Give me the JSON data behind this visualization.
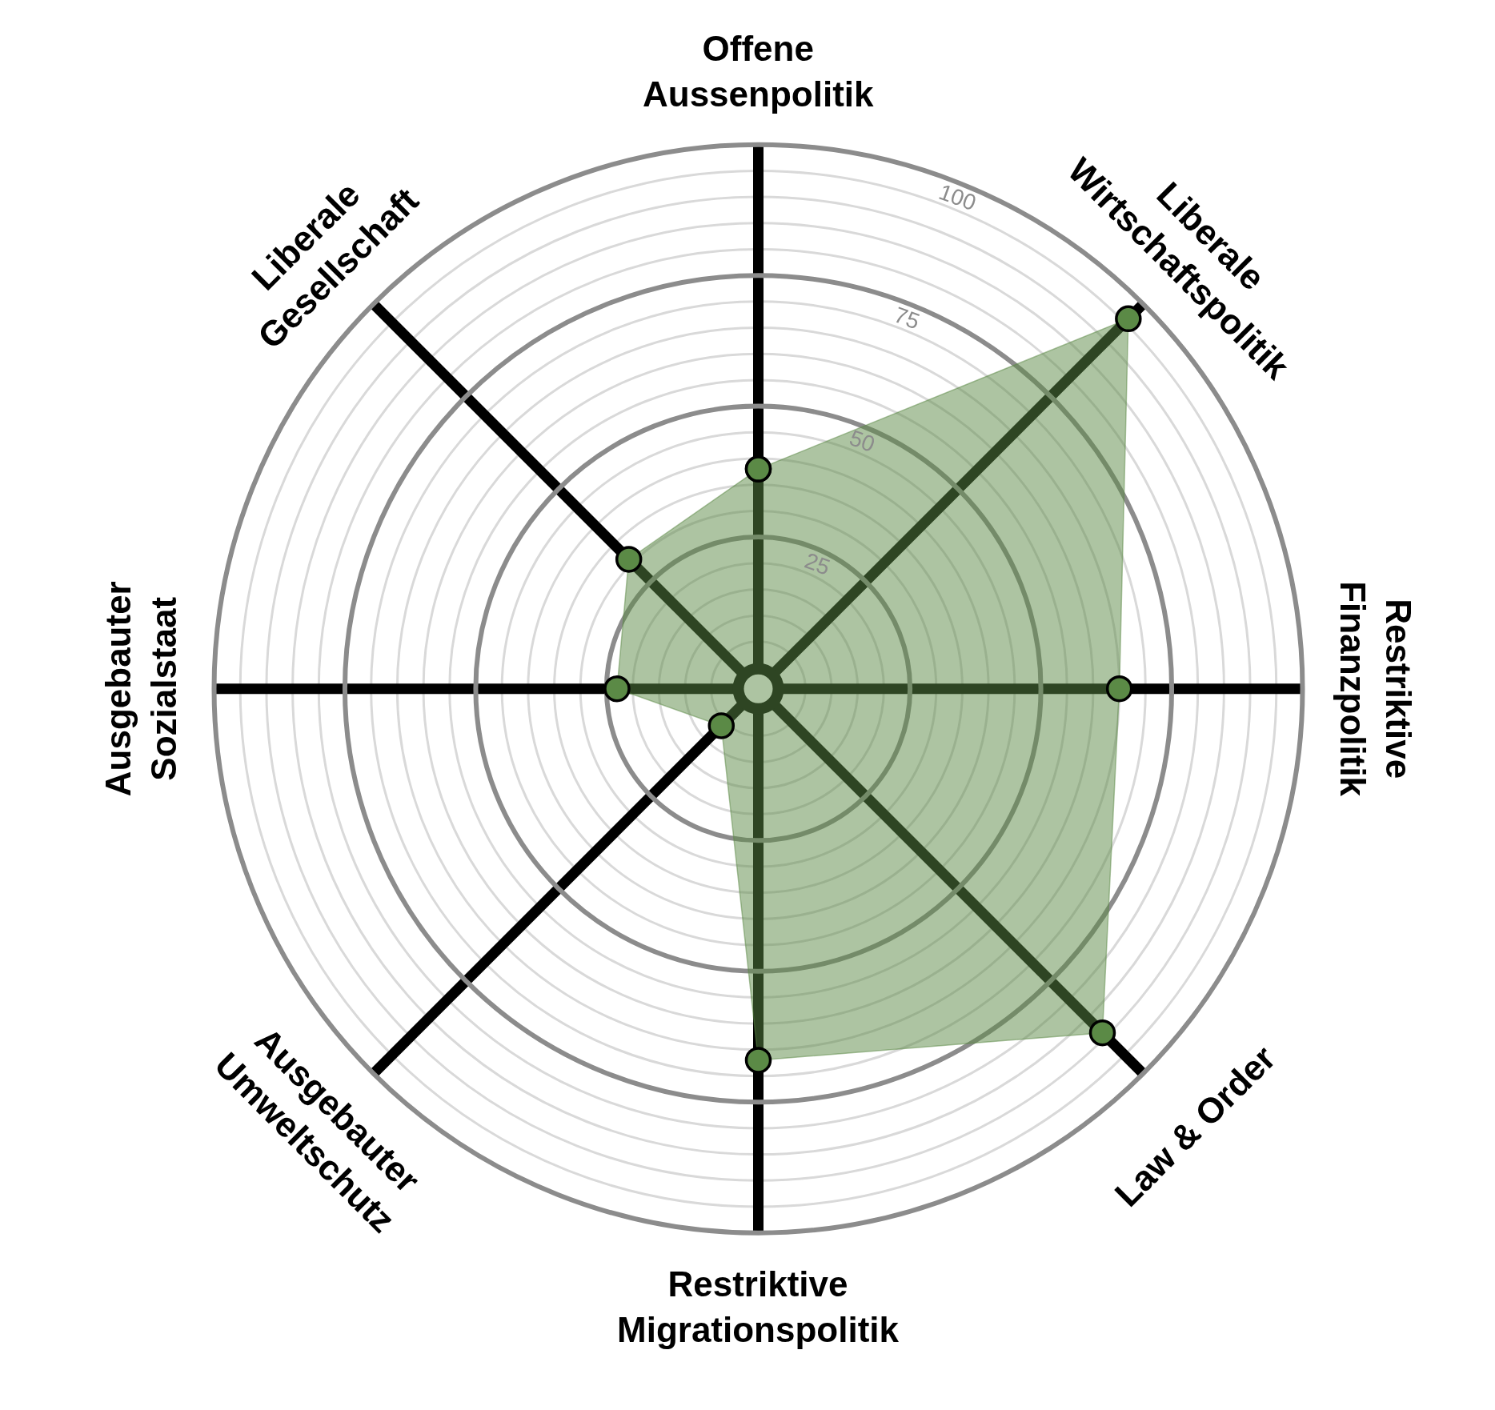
{
  "chart_data": {
    "type": "radar",
    "categories": [
      "Offene\nAussenpolitik",
      "Liberale\nWirtschaftspolitik",
      "Restriktive\nFinanzpolitik",
      "Law & Order",
      "Restriktive\nMigrationspolitik",
      "Ausgebauter\nUmweltschutz",
      "Ausgebauter\nSozialstaat",
      "Liberale\nGesellschaft"
    ],
    "series": [
      {
        "color": "#5b8a46",
        "values": [
          38,
          96,
          65,
          89,
          67,
          6,
          23,
          31
        ]
      }
    ],
    "ylim": [
      -4,
      100
    ],
    "yticks": [
      25,
      50,
      75,
      100
    ],
    "grid": true,
    "marker": "circle"
  }
}
